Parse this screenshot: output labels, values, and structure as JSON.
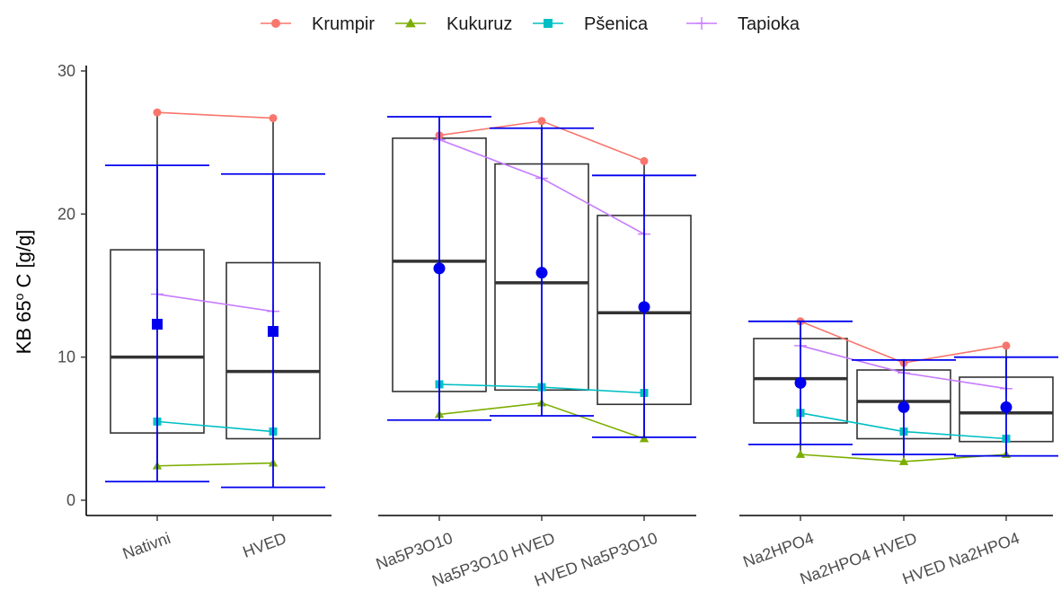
{
  "chart_data": {
    "type": "box",
    "ylabel_main": "KB 65",
    "ylabel_sup": "o",
    "ylabel_rest": " C [g/g]",
    "yticks": [
      0,
      10,
      20,
      30
    ],
    "ylim": [
      -1,
      30.5
    ],
    "legend_position": "top",
    "series": [
      {
        "name": "Krumpir",
        "color": "#F8766D",
        "marker": "circle"
      },
      {
        "name": "Kukuruz",
        "color": "#7CAE00",
        "marker": "triangle"
      },
      {
        "name": "Pšenica",
        "color": "#00BFC4",
        "marker": "square"
      },
      {
        "name": "Tapioka",
        "color": "#C77CFF",
        "marker": "plus"
      }
    ],
    "panels": [
      {
        "categories": [
          "Nativni",
          "HVED"
        ],
        "boxes": [
          {
            "q1": 4.7,
            "median": 10.0,
            "q3": 17.5,
            "whisker_low": 2.4,
            "whisker_high": 27.1
          },
          {
            "q1": 4.3,
            "median": 9.0,
            "q3": 16.6,
            "whisker_low": 2.6,
            "whisker_high": 26.7
          }
        ],
        "means": [
          12.3,
          11.8
        ],
        "mean_marker": "square",
        "errorbars": [
          [
            1.3,
            23.4
          ],
          [
            0.9,
            22.8
          ]
        ],
        "lines": {
          "Krumpir": [
            27.1,
            26.7
          ],
          "Kukuruz": [
            2.4,
            2.6
          ],
          "Pšenica": [
            5.5,
            4.8
          ],
          "Tapioka": [
            14.4,
            13.2
          ]
        }
      },
      {
        "categories": [
          "Na5P3O10",
          "Na5P3O10 HVED",
          "HVED Na5P3O10"
        ],
        "boxes": [
          {
            "q1": 7.6,
            "median": 16.7,
            "q3": 25.3,
            "whisker_low": 6.0,
            "whisker_high": 25.5
          },
          {
            "q1": 7.7,
            "median": 15.2,
            "q3": 23.5,
            "whisker_low": 6.8,
            "whisker_high": 26.5
          },
          {
            "q1": 6.7,
            "median": 13.1,
            "q3": 19.9,
            "whisker_low": 4.3,
            "whisker_high": 23.7
          }
        ],
        "means": [
          16.2,
          15.9,
          13.5
        ],
        "mean_marker": "circle",
        "errorbars": [
          [
            5.6,
            26.8
          ],
          [
            5.9,
            26.0
          ],
          [
            4.4,
            22.7
          ]
        ],
        "lines": {
          "Krumpir": [
            25.5,
            26.5,
            23.7
          ],
          "Kukuruz": [
            6.0,
            6.8,
            4.3
          ],
          "Pšenica": [
            8.1,
            7.9,
            7.5
          ],
          "Tapioka": [
            25.2,
            22.5,
            18.6
          ]
        }
      },
      {
        "categories": [
          "Na2HPO4",
          "Na2HPO4 HVED",
          "HVED Na2HPO4"
        ],
        "boxes": [
          {
            "q1": 5.4,
            "median": 8.5,
            "q3": 11.3,
            "whisker_low": 3.2,
            "whisker_high": 12.5
          },
          {
            "q1": 4.3,
            "median": 6.9,
            "q3": 9.1,
            "whisker_low": 2.7,
            "whisker_high": 9.6
          },
          {
            "q1": 4.1,
            "median": 6.1,
            "q3": 8.6,
            "whisker_low": 3.2,
            "whisker_high": 10.8
          }
        ],
        "means": [
          8.2,
          6.5,
          6.5
        ],
        "mean_marker": "circle",
        "errorbars": [
          [
            3.9,
            12.5
          ],
          [
            3.2,
            9.8
          ],
          [
            3.1,
            10.0
          ]
        ],
        "lines": {
          "Krumpir": [
            12.5,
            9.6,
            10.8
          ],
          "Kukuruz": [
            3.2,
            2.7,
            3.2
          ],
          "Pšenica": [
            6.1,
            4.8,
            4.3
          ],
          "Tapioka": [
            10.8,
            8.9,
            7.8
          ]
        }
      }
    ]
  }
}
